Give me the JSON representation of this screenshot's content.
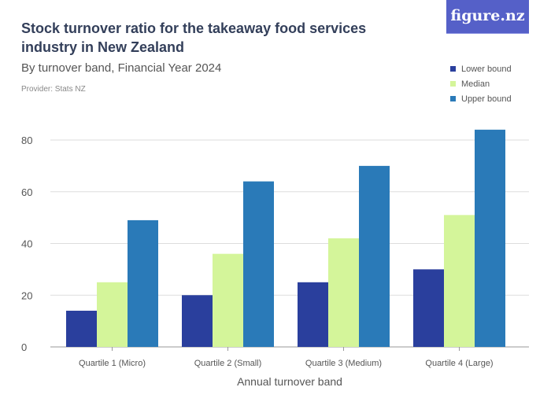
{
  "header": {
    "title": "Stock turnover ratio for the takeaway food services industry in New Zealand",
    "subtitle": "By turnover band, Financial Year 2024",
    "provider": "Provider: Stats NZ",
    "logo": "figure.nz"
  },
  "chart_data": {
    "type": "bar",
    "title": "Stock turnover ratio for the takeaway food services industry in New Zealand",
    "subtitle": "By turnover band, Financial Year 2024",
    "xlabel": "Annual turnover band",
    "ylabel": "",
    "categories": [
      "Quartile 1 (Micro)",
      "Quartile 2 (Small)",
      "Quartile 3 (Medium)",
      "Quartile 4 (Large)"
    ],
    "series": [
      {
        "name": "Lower bound",
        "color": "#2a3f9d",
        "values": [
          14,
          20,
          25,
          30
        ]
      },
      {
        "name": "Median",
        "color": "#d4f59a",
        "values": [
          25,
          36,
          42,
          51
        ]
      },
      {
        "name": "Upper bound",
        "color": "#2a7ab8",
        "values": [
          49,
          64,
          70,
          84
        ]
      }
    ],
    "ylim": [
      0,
      80
    ],
    "yticks": [
      0,
      20,
      40,
      60,
      80
    ],
    "grid": true,
    "legend": "top-right"
  }
}
